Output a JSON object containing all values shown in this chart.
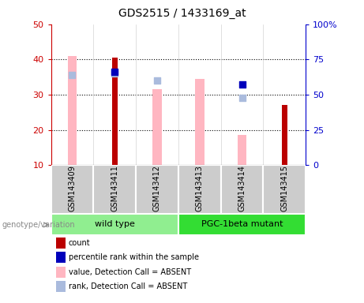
{
  "title": "GDS2515 / 1433169_at",
  "samples": [
    "GSM143409",
    "GSM143411",
    "GSM143412",
    "GSM143413",
    "GSM143414",
    "GSM143415"
  ],
  "groups": [
    {
      "name": "wild type",
      "indices": [
        0,
        1,
        2
      ],
      "color": "#90EE90"
    },
    {
      "name": "PGC-1beta mutant",
      "indices": [
        3,
        4,
        5
      ],
      "color": "#33DD33"
    }
  ],
  "ylim_left": [
    10,
    50
  ],
  "ylim_right": [
    0,
    100
  ],
  "yticks_left": [
    10,
    20,
    30,
    40,
    50
  ],
  "yticks_right": [
    0,
    25,
    50,
    75,
    100
  ],
  "yticklabels_right": [
    "0",
    "25",
    "50",
    "75",
    "100%"
  ],
  "count_bars": {
    "values": [
      null,
      40.5,
      null,
      null,
      null,
      27.0
    ],
    "color": "#BB0000"
  },
  "rank_dots": {
    "values": [
      null,
      36.5,
      null,
      null,
      33.0,
      null
    ],
    "color": "#0000BB"
  },
  "value_absent_bars": {
    "values": [
      41.0,
      null,
      31.5,
      34.5,
      18.5,
      null
    ],
    "color": "#FFB6C1"
  },
  "rank_absent_dots": {
    "values": [
      35.5,
      36.0,
      34.0,
      null,
      29.0,
      null
    ],
    "color": "#AABBDD"
  },
  "left_axis_color": "#CC0000",
  "right_axis_color": "#0000CC",
  "background_color": "#FFFFFF",
  "label_area_color": "#CCCCCC",
  "genotype_label": "genotype/variation",
  "legend_items": [
    {
      "label": "count",
      "color": "#BB0000"
    },
    {
      "label": "percentile rank within the sample",
      "color": "#0000BB"
    },
    {
      "label": "value, Detection Call = ABSENT",
      "color": "#FFB6C1"
    },
    {
      "label": "rank, Detection Call = ABSENT",
      "color": "#AABBDD"
    }
  ]
}
